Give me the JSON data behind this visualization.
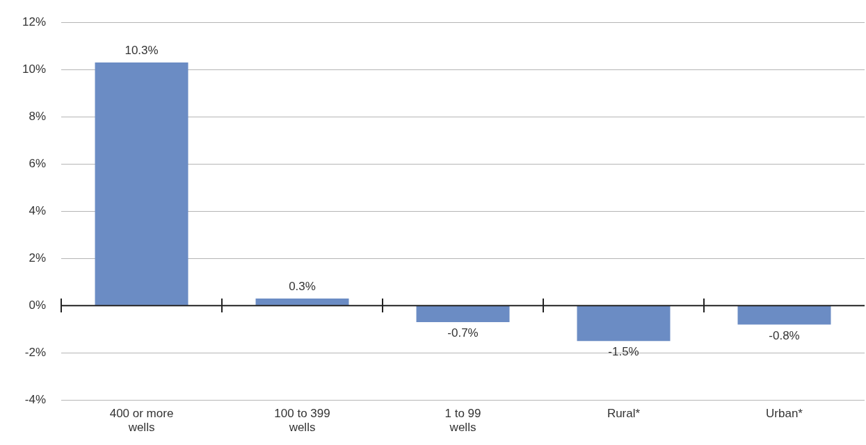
{
  "chart_data": {
    "type": "bar",
    "categories": [
      "400 or more\nwells",
      "100 to 399\nwells",
      "1 to 99\nwells",
      "Rural*",
      "Urban*"
    ],
    "values": [
      10.3,
      0.3,
      -0.7,
      -1.5,
      -0.8
    ],
    "value_labels": [
      "10.3%",
      "0.3%",
      "-0.7%",
      "-1.5%",
      "-0.8%"
    ],
    "color": "#6b8cc4",
    "ylim": [
      -4,
      12
    ],
    "yticks": [
      {
        "value": -4,
        "label": "-4%"
      },
      {
        "value": -2,
        "label": "-2%"
      },
      {
        "value": 0,
        "label": "0%"
      },
      {
        "value": 2,
        "label": "2%"
      },
      {
        "value": 4,
        "label": "4%"
      },
      {
        "value": 6,
        "label": "6%"
      },
      {
        "value": 8,
        "label": "8%"
      },
      {
        "value": 10,
        "label": "10%"
      },
      {
        "value": 12,
        "label": "12%"
      }
    ],
    "grid": "y",
    "legend": false
  }
}
